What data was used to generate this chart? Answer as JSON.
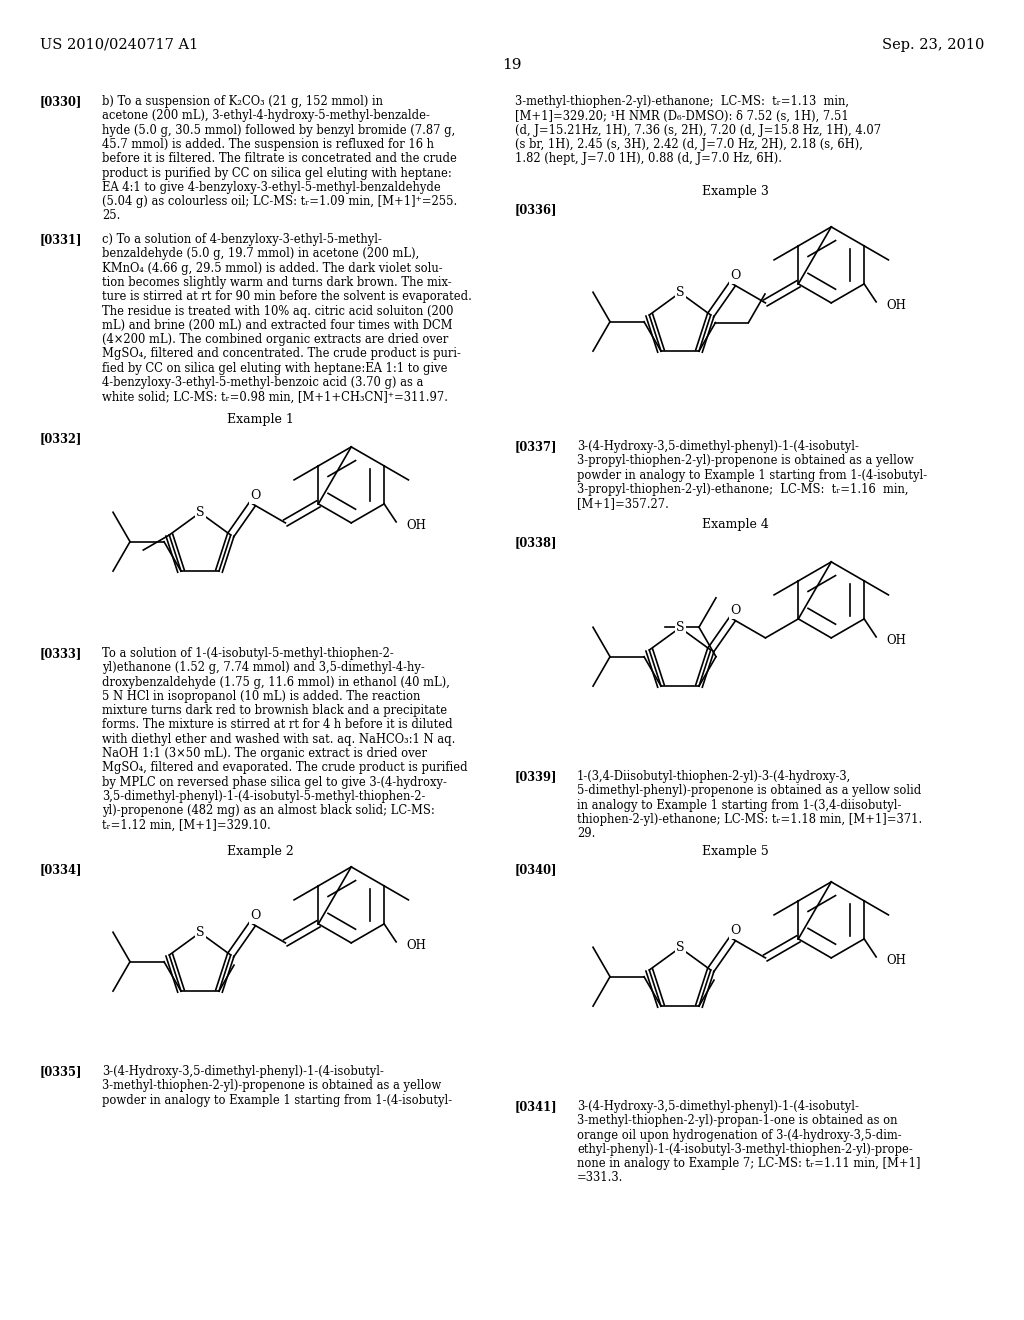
{
  "page_number": "19",
  "header_left": "US 2010/0240717 A1",
  "header_right": "Sep. 23, 2010",
  "background_color": "#ffffff",
  "text_color": "#000000"
}
